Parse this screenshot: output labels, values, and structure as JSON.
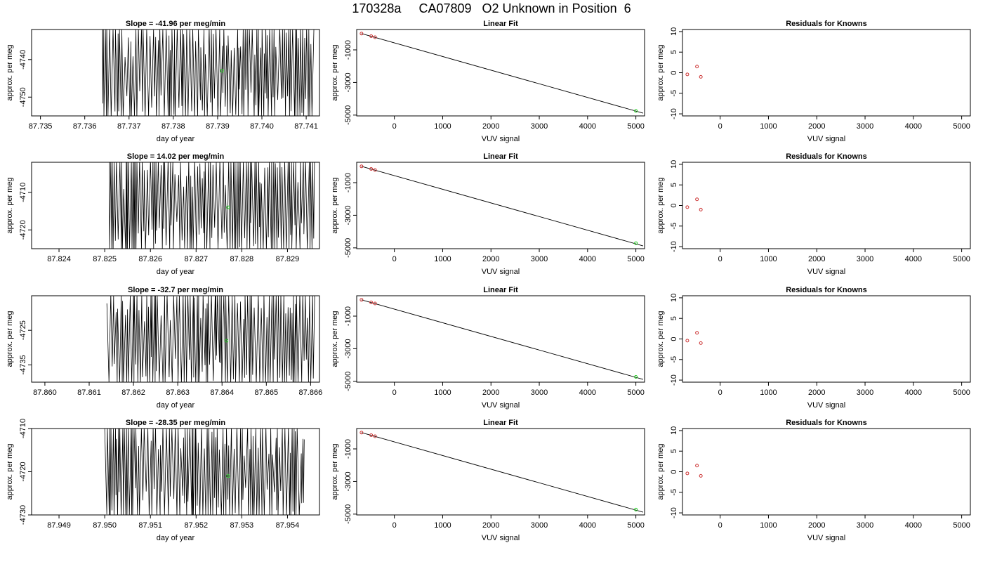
{
  "figure": {
    "title": "170328a     CA07809   O2 Unknown in Position  6"
  },
  "colors": {
    "trace": "#000000",
    "known_point": "#cc3333",
    "unknown_point": "#22cc22",
    "fit_line": "#000000"
  },
  "chart_data": [
    {
      "panel": "timeseries-1",
      "type": "line",
      "title": "Slope =  -41.96  per meg/min",
      "xlabel": "day of year",
      "ylabel": "approx. per meg",
      "xlim": [
        87.7348,
        87.7413
      ],
      "ylim": [
        -4755,
        -4732
      ],
      "xticks": [
        "87.735",
        "87.736",
        "87.737",
        "87.738",
        "87.739",
        "87.740",
        "87.741"
      ],
      "xtick_values": [
        87.735,
        87.736,
        87.737,
        87.738,
        87.739,
        87.74,
        87.741
      ],
      "yticks": [
        "-4750",
        "-4740"
      ],
      "ytick_values": [
        -4750,
        -4740
      ],
      "trace_x_range": [
        87.7364,
        87.7412
      ],
      "unknown_point": {
        "x": 87.7391,
        "y": -4743
      }
    },
    {
      "panel": "fit-1",
      "type": "scatter",
      "title": "Linear Fit",
      "xlabel": "VUV signal",
      "ylabel": "approx. per meg",
      "xlim": [
        -780,
        5180
      ],
      "ylim": [
        -5050,
        250
      ],
      "xticks": [
        "0",
        "1000",
        "2000",
        "3000",
        "4000",
        "5000"
      ],
      "xtick_values": [
        0,
        1000,
        2000,
        3000,
        4000,
        5000
      ],
      "yticks": [
        "-5000",
        "-3000",
        "-1000"
      ],
      "ytick_values": [
        -5000,
        -3000,
        -1000
      ],
      "knowns": [
        {
          "x": -680,
          "y": 0
        },
        {
          "x": -480,
          "y": -160
        },
        {
          "x": -400,
          "y": -225
        }
      ],
      "unknown": {
        "x": 5000,
        "y": -4743
      },
      "fit_line": {
        "x": [
          -680,
          5150
        ],
        "y": [
          0,
          -4880
        ]
      }
    },
    {
      "panel": "resid-1",
      "type": "scatter",
      "title": "Residuals for Knowns",
      "xlabel": "VUV signal",
      "ylabel": "approx. per meg",
      "xlim": [
        -780,
        5180
      ],
      "ylim": [
        -10.5,
        10.5
      ],
      "xticks": [
        "0",
        "1000",
        "2000",
        "3000",
        "4000",
        "5000"
      ],
      "xtick_values": [
        0,
        1000,
        2000,
        3000,
        4000,
        5000
      ],
      "yticks": [
        "-10",
        "-5",
        "0",
        "5",
        "10"
      ],
      "ytick_values": [
        -10,
        -5,
        0,
        5,
        10
      ],
      "points": [
        {
          "x": -680,
          "y": -0.4
        },
        {
          "x": -480,
          "y": 1.5
        },
        {
          "x": -400,
          "y": -1.0
        }
      ]
    },
    {
      "panel": "timeseries-2",
      "type": "line",
      "title": "Slope =  14.02  per meg/min",
      "xlabel": "day of year",
      "ylabel": "approx. per meg",
      "xlim": [
        87.8234,
        87.8297
      ],
      "ylim": [
        -4725,
        -4702
      ],
      "xticks": [
        "87.824",
        "87.825",
        "87.826",
        "87.827",
        "87.828",
        "87.829"
      ],
      "xtick_values": [
        87.824,
        87.825,
        87.826,
        87.827,
        87.828,
        87.829
      ],
      "yticks": [
        "-4720",
        "-4710"
      ],
      "ytick_values": [
        -4720,
        -4710
      ],
      "trace_x_range": [
        87.8251,
        87.8296
      ],
      "unknown_point": {
        "x": 87.8277,
        "y": -4714
      }
    },
    {
      "panel": "fit-2",
      "type": "scatter",
      "title": "Linear Fit",
      "xlabel": "VUV signal",
      "ylabel": "approx. per meg",
      "xlim": [
        -780,
        5180
      ],
      "ylim": [
        -5050,
        250
      ],
      "xticks": [
        "0",
        "1000",
        "2000",
        "3000",
        "4000",
        "5000"
      ],
      "xtick_values": [
        0,
        1000,
        2000,
        3000,
        4000,
        5000
      ],
      "yticks": [
        "-5000",
        "-3000",
        "-1000"
      ],
      "ytick_values": [
        -5000,
        -3000,
        -1000
      ],
      "knowns": [
        {
          "x": -680,
          "y": 0
        },
        {
          "x": -480,
          "y": -160
        },
        {
          "x": -400,
          "y": -225
        }
      ],
      "unknown": {
        "x": 5000,
        "y": -4714
      },
      "fit_line": {
        "x": [
          -680,
          5150
        ],
        "y": [
          0,
          -4880
        ]
      }
    },
    {
      "panel": "resid-2",
      "type": "scatter",
      "title": "Residuals for Knowns",
      "xlabel": "VUV signal",
      "ylabel": "approx. per meg",
      "xlim": [
        -780,
        5180
      ],
      "ylim": [
        -10.5,
        10.5
      ],
      "xticks": [
        "0",
        "1000",
        "2000",
        "3000",
        "4000",
        "5000"
      ],
      "xtick_values": [
        0,
        1000,
        2000,
        3000,
        4000,
        5000
      ],
      "yticks": [
        "-10",
        "-5",
        "0",
        "5",
        "10"
      ],
      "ytick_values": [
        -10,
        -5,
        0,
        5,
        10
      ],
      "points": [
        {
          "x": -680,
          "y": -0.4
        },
        {
          "x": -480,
          "y": 1.5
        },
        {
          "x": -400,
          "y": -1.0
        }
      ]
    },
    {
      "panel": "timeseries-3",
      "type": "line",
      "title": "Slope =  -32.7  per meg/min",
      "xlabel": "day of year",
      "ylabel": "approx. per meg",
      "xlim": [
        87.8597,
        87.8662
      ],
      "ylim": [
        -4740,
        -4715
      ],
      "xticks": [
        "87.860",
        "87.861",
        "87.862",
        "87.863",
        "87.864",
        "87.865",
        "87.866"
      ],
      "xtick_values": [
        87.86,
        87.861,
        87.862,
        87.863,
        87.864,
        87.865,
        87.866
      ],
      "yticks": [
        "-4735",
        "-4725"
      ],
      "ytick_values": [
        -4735,
        -4725
      ],
      "trace_x_range": [
        87.8614,
        87.8661
      ],
      "unknown_point": {
        "x": 87.8641,
        "y": -4728
      }
    },
    {
      "panel": "fit-3",
      "type": "scatter",
      "title": "Linear Fit",
      "xlabel": "VUV signal",
      "ylabel": "approx. per meg",
      "xlim": [
        -780,
        5180
      ],
      "ylim": [
        -5050,
        250
      ],
      "xticks": [
        "0",
        "1000",
        "2000",
        "3000",
        "4000",
        "5000"
      ],
      "xtick_values": [
        0,
        1000,
        2000,
        3000,
        4000,
        5000
      ],
      "yticks": [
        "-5000",
        "-3000",
        "-1000"
      ],
      "ytick_values": [
        -5000,
        -3000,
        -1000
      ],
      "knowns": [
        {
          "x": -680,
          "y": 0
        },
        {
          "x": -480,
          "y": -160
        },
        {
          "x": -400,
          "y": -225
        }
      ],
      "unknown": {
        "x": 5000,
        "y": -4728
      },
      "fit_line": {
        "x": [
          -680,
          5150
        ],
        "y": [
          0,
          -4880
        ]
      }
    },
    {
      "panel": "resid-3",
      "type": "scatter",
      "title": "Residuals for Knowns",
      "xlabel": "VUV signal",
      "ylabel": "approx. per meg",
      "xlim": [
        -780,
        5180
      ],
      "ylim": [
        -10.5,
        10.5
      ],
      "xticks": [
        "0",
        "1000",
        "2000",
        "3000",
        "4000",
        "5000"
      ],
      "xtick_values": [
        0,
        1000,
        2000,
        3000,
        4000,
        5000
      ],
      "yticks": [
        "-10",
        "-5",
        "0",
        "5",
        "10"
      ],
      "ytick_values": [
        -10,
        -5,
        0,
        5,
        10
      ],
      "points": [
        {
          "x": -680,
          "y": -0.4
        },
        {
          "x": -480,
          "y": 1.5
        },
        {
          "x": -400,
          "y": -1.0
        }
      ]
    },
    {
      "panel": "timeseries-4",
      "type": "line",
      "title": "Slope =  -28.35  per meg/min",
      "xlabel": "day of year",
      "ylabel": "approx. per meg",
      "xlim": [
        87.9484,
        87.9547
      ],
      "ylim": [
        -4730,
        -4710
      ],
      "xticks": [
        "87.949",
        "87.950",
        "87.951",
        "87.952",
        "87.953",
        "87.954"
      ],
      "xtick_values": [
        87.949,
        87.95,
        87.951,
        87.952,
        87.953,
        87.954
      ],
      "yticks": [
        "-4730",
        "-4720",
        "-4710"
      ],
      "ytick_values": [
        -4730,
        -4720,
        -4710
      ],
      "trace_x_range": [
        87.95,
        87.9544
      ],
      "unknown_point": {
        "x": 87.9527,
        "y": -4721
      }
    },
    {
      "panel": "fit-4",
      "type": "scatter",
      "title": "Linear Fit",
      "xlabel": "VUV signal",
      "ylabel": "approx. per meg",
      "xlim": [
        -780,
        5180
      ],
      "ylim": [
        -5050,
        250
      ],
      "xticks": [
        "0",
        "1000",
        "2000",
        "3000",
        "4000",
        "5000"
      ],
      "xtick_values": [
        0,
        1000,
        2000,
        3000,
        4000,
        5000
      ],
      "yticks": [
        "-5000",
        "-3000",
        "-1000"
      ],
      "ytick_values": [
        -5000,
        -3000,
        -1000
      ],
      "knowns": [
        {
          "x": -680,
          "y": 0
        },
        {
          "x": -480,
          "y": -160
        },
        {
          "x": -400,
          "y": -225
        }
      ],
      "unknown": {
        "x": 5000,
        "y": -4721
      },
      "fit_line": {
        "x": [
          -680,
          5150
        ],
        "y": [
          0,
          -4880
        ]
      }
    },
    {
      "panel": "resid-4",
      "type": "scatter",
      "title": "Residuals for Knowns",
      "xlabel": "VUV signal",
      "ylabel": "approx. per meg",
      "xlim": [
        -780,
        5180
      ],
      "ylim": [
        -10.5,
        10.5
      ],
      "xticks": [
        "0",
        "1000",
        "2000",
        "3000",
        "4000",
        "5000"
      ],
      "xtick_values": [
        0,
        1000,
        2000,
        3000,
        4000,
        5000
      ],
      "yticks": [
        "-10",
        "-5",
        "0",
        "5",
        "10"
      ],
      "ytick_values": [
        -10,
        -5,
        0,
        5,
        10
      ],
      "points": [
        {
          "x": -680,
          "y": -0.4
        },
        {
          "x": -480,
          "y": 1.5
        },
        {
          "x": -400,
          "y": -1.0
        }
      ]
    }
  ]
}
